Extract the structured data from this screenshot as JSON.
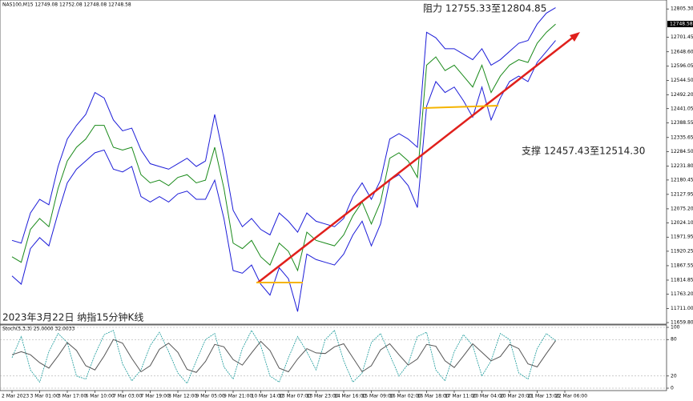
{
  "header": "NAS100,M15  12749.08 12752.08 12748.08 12748.58",
  "chart_data": [
    {
      "type": "line",
      "title": "2023年3月22日 纳指15分钟K线",
      "annotations": [
        "阻力 12755.33至12804.85",
        "支撑 12457.43至12514.30"
      ],
      "current_price": 12748.58,
      "categories": [
        "2 Mar 2023",
        null,
        null,
        "3 Mar 01:00",
        null,
        null,
        "3 Mar 17:00",
        null,
        null,
        "6 Mar 10:00",
        null,
        null,
        "7 Mar 03:00",
        null,
        null,
        "7 Mar 19:00",
        null,
        null,
        "8 Mar 12:00",
        null,
        null,
        "9 Mar 05:00",
        null,
        null,
        "9 Mar 21:00",
        null,
        null,
        "10 Mar 14:00",
        null,
        null,
        "13 Mar 07:00",
        null,
        null,
        "13 Mar 23:00",
        null,
        null,
        "14 Mar 16:00",
        null,
        null,
        "15 Mar 09:00",
        null,
        null,
        "16 Mar 02:00",
        null,
        null,
        "16 Mar 18:00",
        null,
        null,
        "17 Mar 11:00",
        null,
        null,
        "20 Mar 04:00",
        null,
        null,
        "20 Mar 20:00",
        null,
        null,
        "21 Mar 13:00",
        null,
        null,
        "22 Mar 06:00",
        null,
        null
      ],
      "series": [
        {
          "color": "#1a8a1a",
          "values": [
            11900,
            11880,
            12000,
            12040,
            12010,
            12150,
            12250,
            12300,
            12330,
            12380,
            12380,
            12300,
            12290,
            12300,
            12200,
            12170,
            12180,
            12160,
            12190,
            12200,
            12170,
            12180,
            12300,
            12150,
            11950,
            11930,
            11960,
            11900,
            11870,
            11950,
            11920,
            11850,
            11990,
            11960,
            11950,
            11940,
            11980,
            12050,
            12100,
            12020,
            12100,
            12260,
            12280,
            12250,
            12190,
            12600,
            12630,
            12580,
            12600,
            12560,
            12520,
            12600,
            12500,
            12560,
            12600,
            12620,
            12610,
            12680,
            12720,
            12750,
            null,
            null,
            null
          ]
        },
        {
          "color": "#1c1cd8",
          "values": [
            11960,
            11950,
            12060,
            12110,
            12090,
            12230,
            12330,
            12380,
            12420,
            12500,
            12480,
            12400,
            12360,
            12370,
            12290,
            12240,
            12230,
            12220,
            12240,
            12260,
            12230,
            12250,
            12420,
            12260,
            12070,
            12010,
            12040,
            12000,
            11980,
            12060,
            12030,
            11990,
            12060,
            12030,
            12020,
            12010,
            12040,
            12120,
            12170,
            12110,
            12180,
            12330,
            12350,
            12330,
            12300,
            12720,
            12700,
            12660,
            12660,
            12640,
            12620,
            12660,
            12600,
            12620,
            12650,
            12680,
            12690,
            12750,
            12790,
            12810,
            null,
            null,
            null
          ]
        },
        {
          "color": "#1c1cd8",
          "values": [
            11830,
            11800,
            11930,
            11970,
            11940,
            12060,
            12170,
            12220,
            12250,
            12280,
            12290,
            12220,
            12210,
            12230,
            12120,
            12100,
            12120,
            12100,
            12130,
            12140,
            12110,
            12110,
            12180,
            12040,
            11850,
            11840,
            11870,
            11800,
            11760,
            11860,
            11820,
            11700,
            11910,
            11890,
            11880,
            11870,
            11910,
            11980,
            12030,
            11940,
            12020,
            12180,
            12200,
            12160,
            12080,
            12450,
            12540,
            12500,
            12520,
            12470,
            12410,
            12520,
            12400,
            12480,
            12540,
            12560,
            12540,
            12610,
            12650,
            12690,
            null,
            null,
            null
          ]
        }
      ],
      "ylim": [
        11654,
        12835
      ],
      "yticks": [
        {
          "value": 12805.3,
          "label": "12805.30"
        },
        12701.45,
        {
          "value": 12648.6,
          "label": "12648.60"
        },
        12596.05,
        {
          "value": 12544.5,
          "label": "12544.50"
        },
        {
          "value": 12492.2,
          "label": "12492.20"
        },
        12441.05,
        12388.55,
        12335.65,
        {
          "value": 12284.5,
          "label": "12284.50"
        },
        {
          "value": 12231.8,
          "label": "12231.80"
        },
        12180.45,
        12127.95,
        {
          "value": 12075.2,
          "label": "12075.20"
        },
        {
          "value": 12024.1,
          "label": "12024.10"
        },
        11971.95,
        11920.25,
        11867.55,
        11814.85,
        {
          "value": 11763.2,
          "label": "11763.20"
        },
        {
          "value": 11711.0,
          "label": "11711.00"
        },
        {
          "value": 11659.8,
          "label": "11659.80"
        }
      ],
      "grid": false
    },
    {
      "type": "line",
      "title": "Stoch(5,3,3) 25.0000 32.0033",
      "series": [
        {
          "color": "#1a9a9a",
          "values": [
            50,
            85,
            30,
            10,
            60,
            90,
            75,
            20,
            15,
            55,
            88,
            95,
            40,
            12,
            30,
            70,
            92,
            60,
            25,
            8,
            45,
            80,
            90,
            35,
            15,
            65,
            95,
            70,
            20,
            10,
            50,
            85,
            60,
            30,
            80,
            95,
            45,
            10,
            25,
            75,
            90,
            55,
            20,
            40,
            85,
            92,
            30,
            12,
            60,
            88,
            70,
            20,
            45,
            90,
            80,
            25,
            15,
            65,
            90,
            78
          ]
        },
        {
          "color": "#555555",
          "values": [
            55,
            60,
            55,
            42,
            33,
            53,
            75,
            62,
            37,
            30,
            53,
            80,
            74,
            49,
            27,
            37,
            64,
            74,
            59,
            31,
            26,
            44,
            72,
            68,
            47,
            38,
            58,
            77,
            62,
            33,
            27,
            48,
            65,
            58,
            57,
            68,
            73,
            50,
            27,
            37,
            63,
            73,
            55,
            38,
            48,
            72,
            69,
            45,
            34,
            53,
            73,
            59,
            45,
            52,
            72,
            65,
            40,
            35,
            57,
            78
          ]
        }
      ],
      "ylim": [
        0,
        100
      ],
      "yticks": [
        100,
        80,
        20,
        0
      ],
      "grid": true
    }
  ]
}
